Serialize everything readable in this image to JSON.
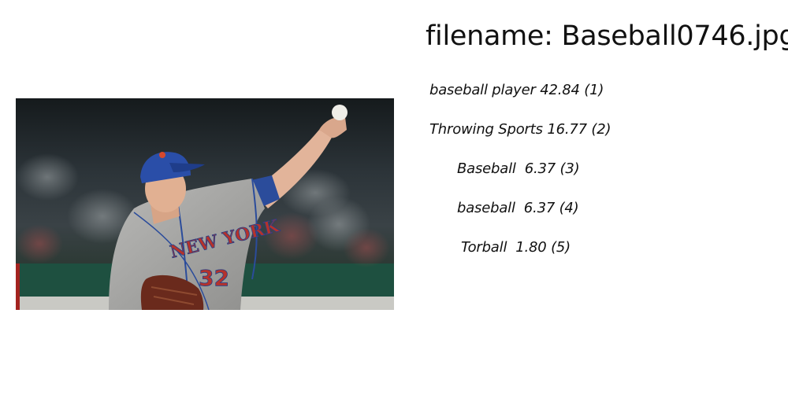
{
  "header": {
    "filename": "filename: Baseball0746.jpg"
  },
  "photo": {
    "jersey_text": "NEW YORK",
    "jersey_number": "32"
  },
  "predictions": [
    {
      "text": "baseball player 42.84 (1)"
    },
    {
      "text": "Throwing Sports 16.77 (2)"
    },
    {
      "text": "Baseball  6.37 (3)"
    },
    {
      "text": "baseball  6.37 (4)"
    },
    {
      "text": "Torball  1.80 (5)"
    }
  ]
}
